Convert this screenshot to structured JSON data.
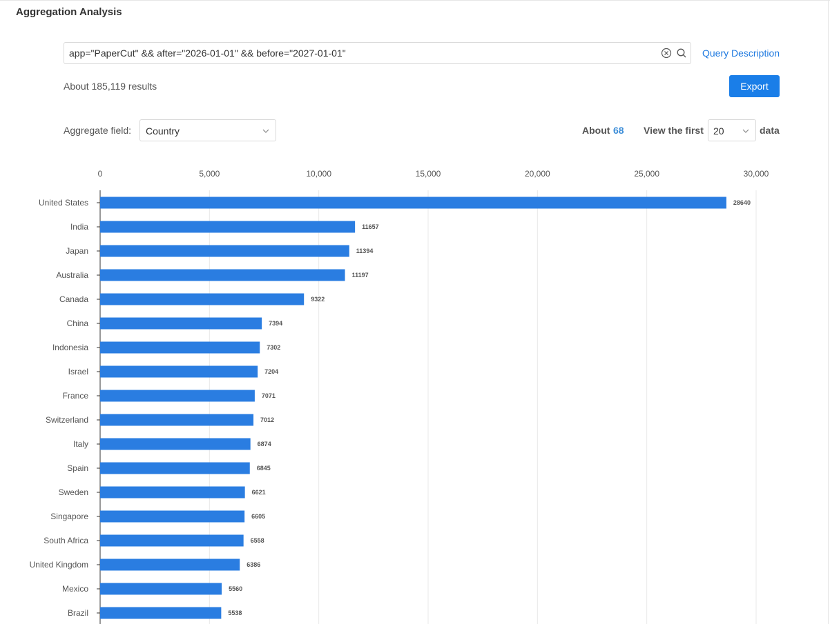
{
  "page": {
    "title": "Aggregation Analysis"
  },
  "search": {
    "query": "app=\"PaperCut\" && after=\"2026-01-01\" && before=\"2027-01-01\"",
    "query_description_link": "Query Description"
  },
  "results": {
    "summary": "About 185,119 results",
    "export_label": "Export"
  },
  "controls": {
    "aggregate_field_label": "Aggregate field:",
    "aggregate_field_value": "Country",
    "about_label": "About",
    "about_count": "68",
    "view_first_label": "View the first",
    "view_first_value": "20",
    "data_label": "data"
  },
  "icons": {
    "clear": "clear-circle-icon",
    "search": "search-icon",
    "dropdown": "chevron-down-icon"
  },
  "colors": {
    "accent": "#1a7ee8",
    "bar": "#2a7de1",
    "link": "#1f7ae0",
    "count": "#3d8ed8"
  },
  "chart_data": {
    "type": "bar",
    "orientation": "horizontal",
    "categories": [
      "United States",
      "India",
      "Japan",
      "Australia",
      "Canada",
      "China",
      "Indonesia",
      "Israel",
      "France",
      "Switzerland",
      "Italy",
      "Spain",
      "Sweden",
      "Singapore",
      "South Africa",
      "United Kingdom",
      "Mexico",
      "Brazil"
    ],
    "values": [
      28640,
      11657,
      11394,
      11197,
      9322,
      7394,
      7302,
      7204,
      7071,
      7012,
      6874,
      6845,
      6621,
      6605,
      6558,
      6386,
      5560,
      5538
    ],
    "xlim": [
      0,
      30000
    ],
    "x_ticks": [
      0,
      5000,
      10000,
      15000,
      20000,
      25000,
      30000
    ],
    "x_tick_labels": [
      "0",
      "5,000",
      "10,000",
      "15,000",
      "20,000",
      "25,000",
      "30,000"
    ],
    "x_axis_position": "top",
    "grid": "vertical",
    "data_labels": true,
    "title": "",
    "xlabel": "",
    "ylabel": ""
  }
}
